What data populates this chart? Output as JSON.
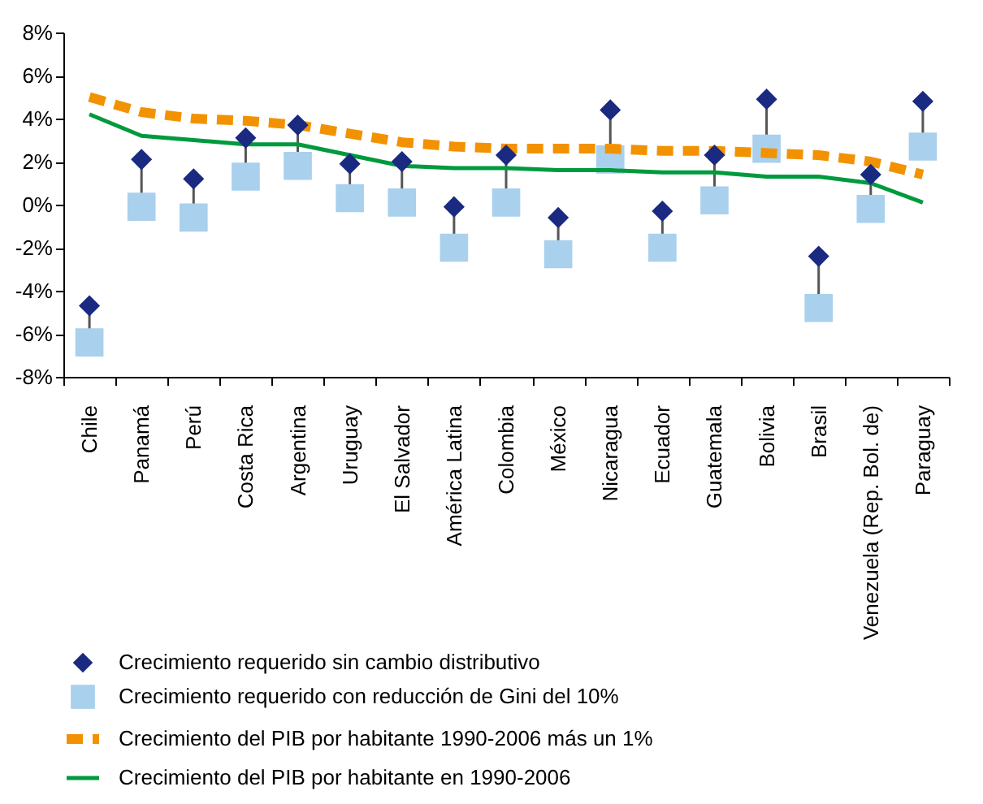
{
  "chart_data": {
    "type": "line",
    "categories": [
      "Chile",
      "Panamá",
      "Perú",
      "Costa Rica",
      "Argentina",
      "Uruguay",
      "El Salvador",
      "América Latina",
      "Colombia",
      "México",
      "Nicaragua",
      "Ecuador",
      "Guatemala",
      "Bolivia",
      "Brasil",
      "Venezuela (Rep. Bol. de)",
      "Paraguay"
    ],
    "series": [
      {
        "name": "Crecimiento requerido sin cambio distributivo",
        "type": "scatter",
        "marker": "diamond",
        "color": "#1a2a80",
        "values": [
          -4.7,
          2.1,
          1.2,
          3.1,
          3.7,
          1.9,
          2.0,
          -0.1,
          2.3,
          -0.6,
          4.4,
          -0.3,
          2.3,
          4.9,
          -2.4,
          1.4,
          4.8
        ]
      },
      {
        "name": "Crecimiento requerido con reducción de Gini del 10%",
        "type": "scatter",
        "marker": "square",
        "color": "#a9d0ec",
        "values": [
          -6.4,
          -0.1,
          -0.6,
          1.3,
          1.8,
          0.3,
          0.1,
          -2.0,
          0.1,
          -2.3,
          2.1,
          -2.0,
          0.2,
          2.6,
          -4.8,
          -0.2,
          2.7
        ]
      },
      {
        "name": "Crecimiento del PIB por habitante 1990-2006 más un 1%",
        "line_style": "dashed",
        "marker": "none",
        "color": "#f39200",
        "values": [
          5.0,
          4.3,
          4.0,
          3.9,
          3.7,
          3.3,
          2.9,
          2.7,
          2.6,
          2.6,
          2.6,
          2.5,
          2.5,
          2.4,
          2.3,
          2.0,
          1.4
        ]
      },
      {
        "name": "Crecimiento del PIB por habitante en 1990-2006",
        "line_style": "solid",
        "marker": "none",
        "color": "#009a3e",
        "values": [
          4.2,
          3.2,
          3.0,
          2.8,
          2.8,
          2.3,
          1.8,
          1.7,
          1.7,
          1.6,
          1.6,
          1.5,
          1.5,
          1.3,
          1.3,
          1.0,
          0.1
        ]
      }
    ],
    "ylim": [
      -8,
      8
    ],
    "yticks": [
      {
        "value": -8,
        "label": "-8%"
      },
      {
        "value": -6,
        "label": "-6%"
      },
      {
        "value": -4,
        "label": "-4%"
      },
      {
        "value": -2,
        "label": "-2%"
      },
      {
        "value": 0,
        "label": "0%"
      },
      {
        "value": 2,
        "label": "2%"
      },
      {
        "value": 4,
        "label": "4%"
      },
      {
        "value": 6,
        "label": "6%"
      },
      {
        "value": 8,
        "label": "8%"
      }
    ],
    "grid": false,
    "legend": "bottom"
  }
}
